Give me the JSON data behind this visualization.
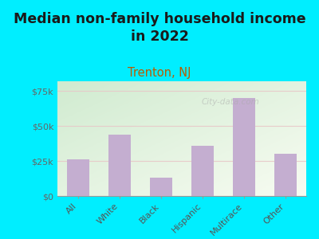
{
  "title": "Median non-family household income\nin 2022",
  "subtitle": "Trenton, NJ",
  "categories": [
    "All",
    "White",
    "Black",
    "Hispanic",
    "Multirace",
    "Other"
  ],
  "values": [
    26000,
    44000,
    13000,
    36000,
    70000,
    30000
  ],
  "bar_color": "#c4aed0",
  "title_fontsize": 12.5,
  "subtitle_fontsize": 10.5,
  "subtitle_color": "#b85c00",
  "title_color": "#1a1a1a",
  "background_color": "#00eeff",
  "plot_bg_top_left": "#d8edd8",
  "plot_bg_bottom_right": "#f5fdf0",
  "ylim": [
    0,
    82000
  ],
  "yticks": [
    0,
    25000,
    50000,
    75000
  ],
  "ytick_labels": [
    "$0",
    "$25k",
    "$50k",
    "$75k"
  ],
  "watermark": "City-data.com",
  "grid_color": "#e8c8c8",
  "grid_alpha": 0.9
}
